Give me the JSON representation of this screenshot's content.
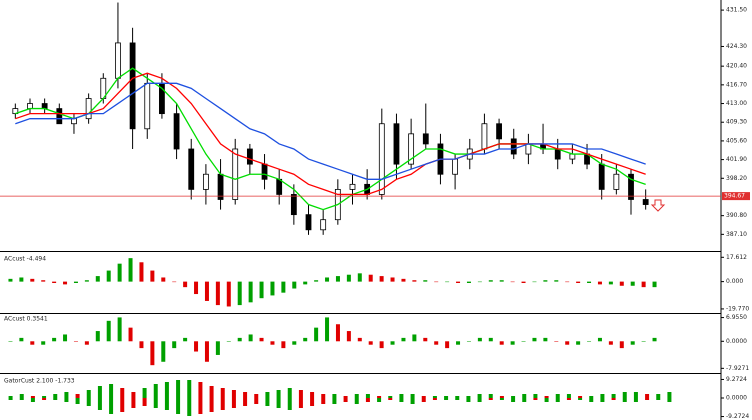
{
  "chart_data": [
    {
      "type": "candlestick",
      "open": [
        411,
        412,
        413,
        412,
        409,
        410,
        414,
        418,
        425,
        408,
        417,
        411,
        404,
        396,
        399,
        394,
        404,
        401,
        398,
        395,
        391,
        388,
        390,
        396,
        397,
        395,
        409,
        401,
        407,
        405,
        399,
        402,
        404,
        409,
        406,
        403,
        405,
        404,
        402,
        403,
        401,
        396,
        399,
        394
      ],
      "high": [
        413,
        414,
        414,
        413,
        411,
        415,
        419,
        433,
        428,
        419,
        419,
        413,
        406,
        401,
        402,
        406,
        405,
        403,
        400,
        397,
        393,
        392,
        398,
        399,
        400,
        412,
        411,
        410,
        413,
        407,
        403,
        406,
        411,
        410,
        408,
        407,
        409,
        406,
        405,
        405,
        403,
        401,
        400,
        396
      ],
      "low": [
        410,
        411,
        411,
        409,
        407,
        409,
        413,
        416,
        404,
        406,
        410,
        402,
        394,
        393,
        392,
        393,
        399,
        396,
        393,
        389,
        387,
        387,
        389,
        393,
        394,
        394,
        398,
        400,
        404,
        397,
        396,
        400,
        403,
        404,
        402,
        401,
        403,
        400,
        401,
        400,
        394,
        395,
        391,
        392
      ],
      "close": [
        412,
        413,
        412,
        409,
        410,
        414,
        418,
        425,
        408,
        417,
        411,
        404,
        396,
        399,
        394,
        404,
        401,
        398,
        395,
        391,
        388,
        390,
        396,
        397,
        395,
        409,
        401,
        407,
        405,
        399,
        402,
        404,
        409,
        406,
        403,
        405,
        404,
        402,
        403,
        401,
        396,
        399,
        394,
        393
      ],
      "up_color": "#ffffff",
      "down_color": "#000000",
      "lines": [
        {
          "color": "#00dd00",
          "values": [
            411,
            412,
            412,
            411,
            410,
            411,
            414,
            418,
            420,
            418,
            416,
            413,
            408,
            403,
            399,
            398,
            399,
            399,
            398,
            396,
            393,
            392,
            393,
            395,
            396,
            398,
            400,
            402,
            404,
            404,
            403,
            403,
            404,
            405,
            405,
            405,
            404,
            404,
            403,
            403,
            401,
            400,
            398,
            397
          ]
        },
        {
          "color": "#ff0000",
          "values": [
            410,
            411,
            411,
            411,
            411,
            411,
            412,
            415,
            418,
            419,
            418,
            416,
            413,
            409,
            405,
            403,
            402,
            401,
            400,
            399,
            397,
            396,
            395,
            395,
            395,
            396,
            398,
            399,
            401,
            402,
            402,
            403,
            404,
            405,
            405,
            405,
            405,
            404,
            404,
            403,
            402,
            401,
            400,
            399
          ]
        },
        {
          "color": "#1e50e0",
          "values": [
            409,
            410,
            410,
            410,
            410,
            411,
            411,
            413,
            415,
            417,
            417,
            417,
            416,
            414,
            412,
            410,
            408,
            407,
            405,
            404,
            402,
            401,
            400,
            399,
            398,
            398,
            399,
            400,
            401,
            402,
            402,
            403,
            403,
            404,
            404,
            405,
            405,
            405,
            405,
            404,
            404,
            403,
            402,
            401
          ]
        }
      ],
      "current_price": 394.67,
      "current_color": "#e03030",
      "ylim": [
        384,
        433.5
      ],
      "yticks": [
        {
          "value": 431.5,
          "label": "431.50"
        },
        {
          "value": 424.3,
          "label": "424.30"
        },
        {
          "value": 420.4,
          "label": "420.40"
        },
        {
          "value": 416.7,
          "label": "416.70"
        },
        {
          "value": 413,
          "label": "413.00"
        },
        {
          "value": 409.3,
          "label": "409.30"
        },
        {
          "value": 405.6,
          "label": "405.60"
        },
        {
          "value": 401.9,
          "label": "401.90"
        },
        {
          "value": 398.2,
          "label": "398.20"
        },
        {
          "value": 390.8,
          "label": "390.80"
        },
        {
          "value": 387.1,
          "label": "387.10"
        }
      ]
    },
    {
      "type": "bar",
      "title": "ACcust -4.494",
      "values": [
        2,
        3,
        2,
        1,
        -1,
        -2,
        -1,
        1,
        4,
        8,
        13,
        17,
        14,
        8,
        3,
        0,
        -4,
        -9,
        -14,
        -17,
        -18,
        -17,
        -15,
        -12,
        -10,
        -8,
        -5,
        -2,
        1,
        3,
        4,
        5,
        6,
        5,
        4,
        3,
        2,
        1,
        1,
        0,
        0,
        -1,
        -1,
        0,
        1,
        1,
        0,
        -1,
        0,
        1,
        1,
        0,
        -1,
        -1,
        -2,
        -2,
        -3,
        -3,
        -4,
        -4
      ],
      "up_color": "#00a000",
      "down_color": "#e00000",
      "ylim": [
        -22,
        20
      ],
      "yticks": [
        17.612,
        {
          "value": 0,
          "label": "0.000"
        },
        {
          "value": -19.77,
          "label": "-19.770"
        }
      ]
    },
    {
      "type": "bar",
      "title": "ACcust 0.3541",
      "values": [
        0,
        1,
        -1,
        -1,
        1,
        2,
        0,
        -1,
        3,
        6,
        7,
        4,
        -2,
        -7,
        -6,
        -2,
        1,
        -3,
        -6,
        -4,
        0,
        1,
        2,
        1,
        -1,
        -2,
        -1,
        1,
        4,
        7,
        5,
        3,
        1,
        -1,
        -2,
        -1,
        1,
        2,
        1,
        -1,
        -2,
        -1,
        0,
        1,
        1,
        -1,
        -1,
        0,
        1,
        1,
        0,
        -1,
        -1,
        0,
        1,
        -1,
        -2,
        -1,
        0,
        1
      ],
      "up_color": "#00a000",
      "down_color": "#e00000",
      "ylim": [
        -9,
        8
      ],
      "yticks": [
        {
          "value": 6.955,
          "label": "6.9550"
        },
        {
          "value": 0,
          "label": "0.0000"
        },
        -7.9271
      ]
    },
    {
      "type": "gator",
      "title": "GatorCust 2.100 -1.733",
      "upper": [
        1,
        2,
        1,
        1,
        2,
        3,
        2,
        4,
        6,
        7,
        5,
        3,
        5,
        7,
        8,
        9,
        9,
        8,
        6,
        5,
        4,
        3,
        2,
        3,
        4,
        5,
        4,
        3,
        2,
        2,
        1,
        2,
        2,
        1,
        1,
        2,
        2,
        1,
        1,
        1,
        1,
        1,
        2,
        2,
        1,
        1,
        2,
        2,
        1,
        2,
        2,
        1,
        1,
        2,
        2,
        3,
        3,
        2,
        2,
        3
      ],
      "lower": [
        -1,
        -1,
        -2,
        -1,
        -1,
        -2,
        -3,
        -4,
        -6,
        -8,
        -7,
        -5,
        -4,
        -5,
        -6,
        -8,
        -9,
        -8,
        -7,
        -6,
        -5,
        -4,
        -3,
        -4,
        -5,
        -6,
        -5,
        -4,
        -3,
        -3,
        -2,
        -3,
        -2,
        -2,
        -1,
        -2,
        -3,
        -2,
        -1,
        -1,
        -1,
        -2,
        -2,
        -1,
        -1,
        -2,
        -2,
        -1,
        -2,
        -2,
        -1,
        -1,
        -2,
        -2,
        -1,
        -2,
        -2,
        -1,
        -1,
        -2
      ],
      "up_color": "#00a000",
      "down_color": "#e00000",
      "ylim": [
        -11,
        11
      ],
      "yticks": [
        9.2724,
        {
          "value": 0,
          "label": "0.0000"
        },
        -9.2724
      ]
    }
  ]
}
